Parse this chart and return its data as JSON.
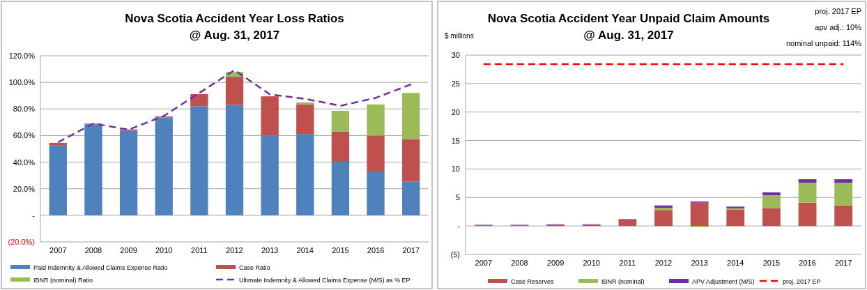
{
  "chart_data": [
    {
      "type": "bar",
      "stacked": true,
      "title": "Nova Scotia Accident Year Loss Ratios @ Aug. 31, 2017",
      "categories": [
        "2007",
        "2008",
        "2009",
        "2010",
        "2011",
        "2012",
        "2013",
        "2014",
        "2015",
        "2016",
        "2017"
      ],
      "series": [
        {
          "name": "Paid Indemnity & Allowed Claims Expense Ratio",
          "color": "#4f81bd",
          "values": [
            52.8,
            68.5,
            63.7,
            73.6,
            82,
            83,
            60,
            61.2,
            40.3,
            32.5,
            25.4
          ]
        },
        {
          "name": "Case Ratio",
          "color": "#c0504d",
          "values": [
            1.7,
            0.5,
            0.9,
            0.8,
            9.2,
            21.2,
            29.5,
            22.2,
            22.6,
            27.5,
            31.8
          ]
        },
        {
          "name": "IBNR (nominal) Ratio",
          "color": "#9bbb59",
          "values": [
            0,
            0,
            0,
            0,
            null,
            3.6,
            null,
            1.5,
            15.7,
            23.4,
            34.8
          ]
        },
        {
          "name": "Ultimate Indemnity & Allowed Claims Expense (M/S) as % EP",
          "type": "line",
          "color": "#7030a0",
          "line_style": "dashed",
          "marker": "none",
          "values": [
            54.9,
            69,
            64.4,
            74.8,
            92,
            109.2,
            91,
            87.6,
            82.4,
            88.3,
            98.5
          ]
        }
      ],
      "ylim": [
        -20,
        120
      ],
      "yticks": [
        {
          "value": -20,
          "label": "(20.0%)"
        },
        {
          "value": 0,
          "label": "-"
        },
        {
          "value": 20,
          "label": "20.0%"
        },
        {
          "value": 40,
          "label": "40.0%"
        },
        {
          "value": 60,
          "label": "60.0%"
        },
        {
          "value": 80,
          "label": "80.0%"
        },
        {
          "value": 100,
          "label": "100.0%"
        },
        {
          "value": 120,
          "label": "120.0%"
        }
      ],
      "grid": "y",
      "legend": "bottom"
    },
    {
      "type": "bar",
      "stacked": true,
      "title": "Nova Scotia Accident Year Unpaid Claim Amounts @ Aug. 31, 2017",
      "ylabel": "$ millions",
      "annotations": [
        "proj. 2017 EP",
        "apv adj.: 10%",
        "nominal unpaid: 114%"
      ],
      "categories": [
        "2007",
        "2008",
        "2009",
        "2010",
        "2011",
        "2012",
        "2013",
        "2014",
        "2015",
        "2016",
        "2017"
      ],
      "series": [
        {
          "name": "Case Reserves",
          "color": "#c0504d",
          "values": [
            0.1,
            0.1,
            0.2,
            0.2,
            1.1,
            2.8,
            4.1,
            2.9,
            3.1,
            4.1,
            3.6
          ]
        },
        {
          "name": "IBNR (nominal)",
          "color": "#9bbb59",
          "values": [
            0,
            0,
            0,
            0,
            0,
            0.4,
            -0.2,
            0.2,
            2.3,
            3.5,
            4
          ]
        },
        {
          "name": "APV Adjustment (M/S)",
          "color": "#7030a0",
          "values": [
            0.1,
            0.1,
            0.1,
            0.1,
            0.1,
            0.4,
            0.2,
            0.3,
            0.5,
            0.6,
            0.6
          ]
        },
        {
          "name": "proj. 2017 EP",
          "type": "line",
          "color": "#ff0000",
          "line_style": "dashed",
          "marker": "none",
          "values": [
            28.4,
            28.4,
            28.4,
            28.4,
            28.4,
            28.4,
            28.4,
            28.4,
            28.4,
            28.4,
            28.4
          ]
        }
      ],
      "ylim": [
        -5,
        30
      ],
      "yticks": [
        {
          "value": -5,
          "label": "(5)"
        },
        {
          "value": 0,
          "label": "-"
        },
        5,
        10,
        15,
        20,
        25,
        30
      ],
      "grid": "y",
      "legend": "bottom"
    }
  ]
}
